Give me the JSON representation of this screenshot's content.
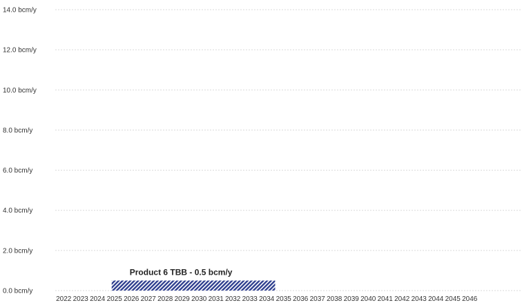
{
  "chart_data": {
    "type": "bar",
    "title": "",
    "xlabel": "",
    "ylabel": "",
    "x_categories": [
      "2022",
      "2023",
      "2024",
      "2025",
      "2026",
      "2027",
      "2028",
      "2029",
      "2030",
      "2031",
      "2032",
      "2033",
      "2034",
      "2035",
      "2036",
      "2037",
      "2038",
      "2039",
      "2040",
      "2041",
      "2042",
      "2043",
      "2044",
      "2045",
      "2046"
    ],
    "y_ticks": [
      "0.0 bcm/y",
      "2.0 bcm/y",
      "4.0 bcm/y",
      "6.0 bcm/y",
      "8.0 bcm/y",
      "10.0 bcm/y",
      "12.0 bcm/y",
      "14.0 bcm/y"
    ],
    "ylim": [
      0,
      14
    ],
    "grid": true,
    "series": [
      {
        "start": "2025",
        "end": "2035",
        "value": 0.5,
        "label": "Product 6 TBB - 0.5 bcm/y",
        "color": "#2f3f8f",
        "pattern": "diagonal-hatch"
      }
    ]
  }
}
